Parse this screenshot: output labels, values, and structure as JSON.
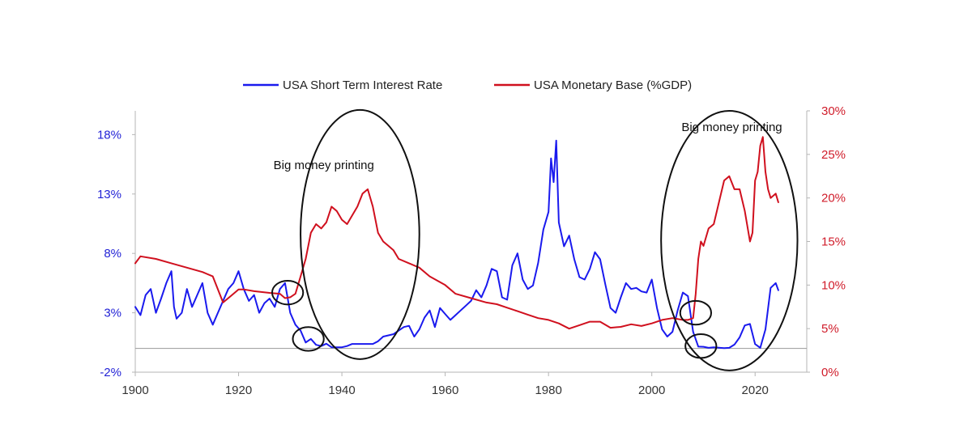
{
  "chart_data": {
    "type": "line",
    "title": "",
    "xlabel": "",
    "ylabel_left": "",
    "ylabel_right": "",
    "xlim": [
      1900,
      2030
    ],
    "ylim_left": [
      -2,
      20
    ],
    "ylim_right": [
      0,
      30
    ],
    "grid": false,
    "legend_position": "top-center",
    "x_ticks": [
      1900,
      1920,
      1940,
      1960,
      1980,
      2000,
      2020
    ],
    "y_left_ticks": [
      "-2%",
      "3%",
      "8%",
      "13%",
      "18%"
    ],
    "y_left_tick_values": [
      -2,
      3,
      8,
      13,
      18
    ],
    "y_right_ticks": [
      "0%",
      "5%",
      "10%",
      "15%",
      "20%",
      "25%",
      "30%"
    ],
    "y_right_tick_values": [
      0,
      5,
      10,
      15,
      20,
      25,
      30
    ],
    "series": [
      {
        "name": "USA Short Term Interest Rate",
        "axis": "left",
        "color": "#1a1aee",
        "x": [
          1900,
          1901,
          1902,
          1903,
          1904,
          1905,
          1906,
          1907,
          1907.5,
          1908,
          1909,
          1910,
          1911,
          1912,
          1913,
          1914,
          1915,
          1916,
          1917,
          1918,
          1919,
          1920,
          1921,
          1922,
          1923,
          1924,
          1925,
          1926,
          1927,
          1928,
          1929,
          1930,
          1931,
          1932,
          1933,
          1934,
          1935,
          1936,
          1937,
          1938,
          1939,
          1940,
          1941,
          1942,
          1943,
          1944,
          1945,
          1946,
          1947,
          1948,
          1949,
          1950,
          1951,
          1952,
          1953,
          1954,
          1955,
          1956,
          1957,
          1958,
          1959,
          1960,
          1961,
          1962,
          1963,
          1964,
          1965,
          1966,
          1967,
          1968,
          1969,
          1970,
          1971,
          1972,
          1973,
          1974,
          1975,
          1976,
          1977,
          1978,
          1979,
          1980,
          1980.5,
          1981,
          1981.5,
          1982,
          1983,
          1984,
          1985,
          1986,
          1987,
          1988,
          1989,
          1990,
          1991,
          1992,
          1993,
          1994,
          1995,
          1996,
          1997,
          1998,
          1999,
          2000,
          2001,
          2002,
          2003,
          2004,
          2005,
          2006,
          2007,
          2008,
          2009,
          2010,
          2011,
          2012,
          2013,
          2014,
          2015,
          2016,
          2017,
          2018,
          2019,
          2020,
          2021,
          2022,
          2023,
          2024,
          2024.5
        ],
        "y": [
          3.5,
          2.8,
          4.5,
          5.0,
          3.0,
          4.2,
          5.5,
          6.5,
          3.5,
          2.5,
          3.0,
          5.0,
          3.5,
          4.5,
          5.5,
          3.0,
          2.0,
          3.0,
          4.0,
          5.0,
          5.5,
          6.5,
          5.0,
          4.0,
          4.5,
          3.0,
          3.8,
          4.2,
          3.5,
          5.0,
          5.5,
          3.0,
          2.0,
          1.5,
          0.5,
          0.8,
          0.3,
          0.2,
          0.4,
          0.1,
          0.1,
          0.1,
          0.2,
          0.38,
          0.38,
          0.38,
          0.38,
          0.38,
          0.6,
          1.0,
          1.1,
          1.2,
          1.5,
          1.8,
          1.9,
          1.0,
          1.6,
          2.6,
          3.2,
          1.8,
          3.4,
          2.9,
          2.4,
          2.8,
          3.2,
          3.6,
          4.0,
          4.9,
          4.3,
          5.3,
          6.7,
          6.5,
          4.3,
          4.1,
          7.0,
          8.0,
          5.8,
          5.0,
          5.3,
          7.2,
          10.0,
          11.5,
          16.0,
          14.0,
          17.5,
          10.6,
          8.6,
          9.5,
          7.5,
          6.0,
          5.8,
          6.7,
          8.1,
          7.5,
          5.4,
          3.4,
          3.0,
          4.3,
          5.5,
          5.0,
          5.1,
          4.8,
          4.7,
          5.8,
          3.4,
          1.6,
          1.0,
          1.4,
          3.2,
          4.7,
          4.4,
          1.4,
          0.15,
          0.14,
          0.05,
          0.09,
          0.06,
          0.03,
          0.05,
          0.32,
          0.93,
          1.94,
          2.06,
          0.37,
          0.05,
          1.6,
          5.1,
          5.5,
          4.9
        ]
      },
      {
        "name": "USA Monetary Base (%GDP)",
        "axis": "right",
        "color": "#d0101e",
        "x": [
          1900,
          1901,
          1904,
          1907,
          1910,
          1913,
          1915,
          1917,
          1919,
          1920,
          1921,
          1923,
          1926,
          1928,
          1929,
          1930,
          1931,
          1932,
          1933,
          1934,
          1935,
          1936,
          1937,
          1938,
          1939,
          1940,
          1941,
          1942,
          1943,
          1944,
          1945,
          1946,
          1947,
          1948,
          1949,
          1950,
          1951,
          1953,
          1955,
          1957,
          1960,
          1962,
          1965,
          1968,
          1970,
          1972,
          1974,
          1976,
          1978,
          1980,
          1982,
          1984,
          1986,
          1988,
          1990,
          1992,
          1994,
          1996,
          1998,
          2000,
          2002,
          2004,
          2006,
          2007,
          2008,
          2008.5,
          2009,
          2009.5,
          2010,
          2011,
          2012,
          2013,
          2014,
          2015,
          2016,
          2017,
          2018,
          2019,
          2019.5,
          2020,
          2020.5,
          2021,
          2021.5,
          2022,
          2022.5,
          2023,
          2024,
          2024.5
        ],
        "y": [
          12.5,
          13.3,
          13.0,
          12.5,
          12.0,
          11.5,
          11.0,
          8.0,
          9.0,
          9.5,
          9.5,
          9.3,
          9.1,
          9.0,
          8.5,
          8.6,
          9.0,
          11.0,
          13.0,
          16.0,
          17.0,
          16.5,
          17.2,
          19.0,
          18.5,
          17.5,
          17.0,
          18.0,
          19.0,
          20.5,
          21.0,
          19.0,
          16.0,
          15.0,
          14.5,
          14.0,
          13.0,
          12.5,
          12.0,
          11.0,
          10.0,
          9.0,
          8.5,
          8.0,
          7.8,
          7.4,
          7.0,
          6.6,
          6.2,
          6.0,
          5.6,
          5.0,
          5.4,
          5.8,
          5.8,
          5.1,
          5.2,
          5.5,
          5.3,
          5.6,
          6.0,
          6.2,
          6.0,
          6.0,
          6.2,
          9.0,
          13.0,
          15.0,
          14.5,
          16.5,
          17.0,
          19.5,
          22.0,
          22.5,
          21.0,
          21.0,
          18.5,
          15.0,
          16.0,
          22.0,
          23.0,
          26.0,
          27.0,
          23.0,
          21.0,
          20.0,
          20.5,
          19.5
        ]
      }
    ],
    "annotations": [
      {
        "text": "Big money printing",
        "x": 1936.5,
        "y_right": 23.3
      },
      {
        "text": "Big money printing",
        "x": 2015.5,
        "y_right": 27.7
      }
    ],
    "ellipses": [
      {
        "cx": 1943.5,
        "cy_right": 15.8,
        "rx_years": 11.5,
        "ry_right": 14.3
      },
      {
        "cx": 2015,
        "cy_right": 15.1,
        "rx_years": 13.2,
        "ry_right": 14.9
      },
      {
        "cx": 1929.5,
        "cy_left": 4.7,
        "rx_years": 3,
        "ry_left": 1.0
      },
      {
        "cx": 1933.5,
        "cy_left": 0.8,
        "rx_years": 3,
        "ry_left": 1.0
      },
      {
        "cx": 2008.5,
        "cy_left": 3.0,
        "rx_years": 3,
        "ry_left": 1.0
      },
      {
        "cx": 2009.5,
        "cy_left": 0.2,
        "rx_years": 3,
        "ry_left": 1.0
      }
    ]
  }
}
